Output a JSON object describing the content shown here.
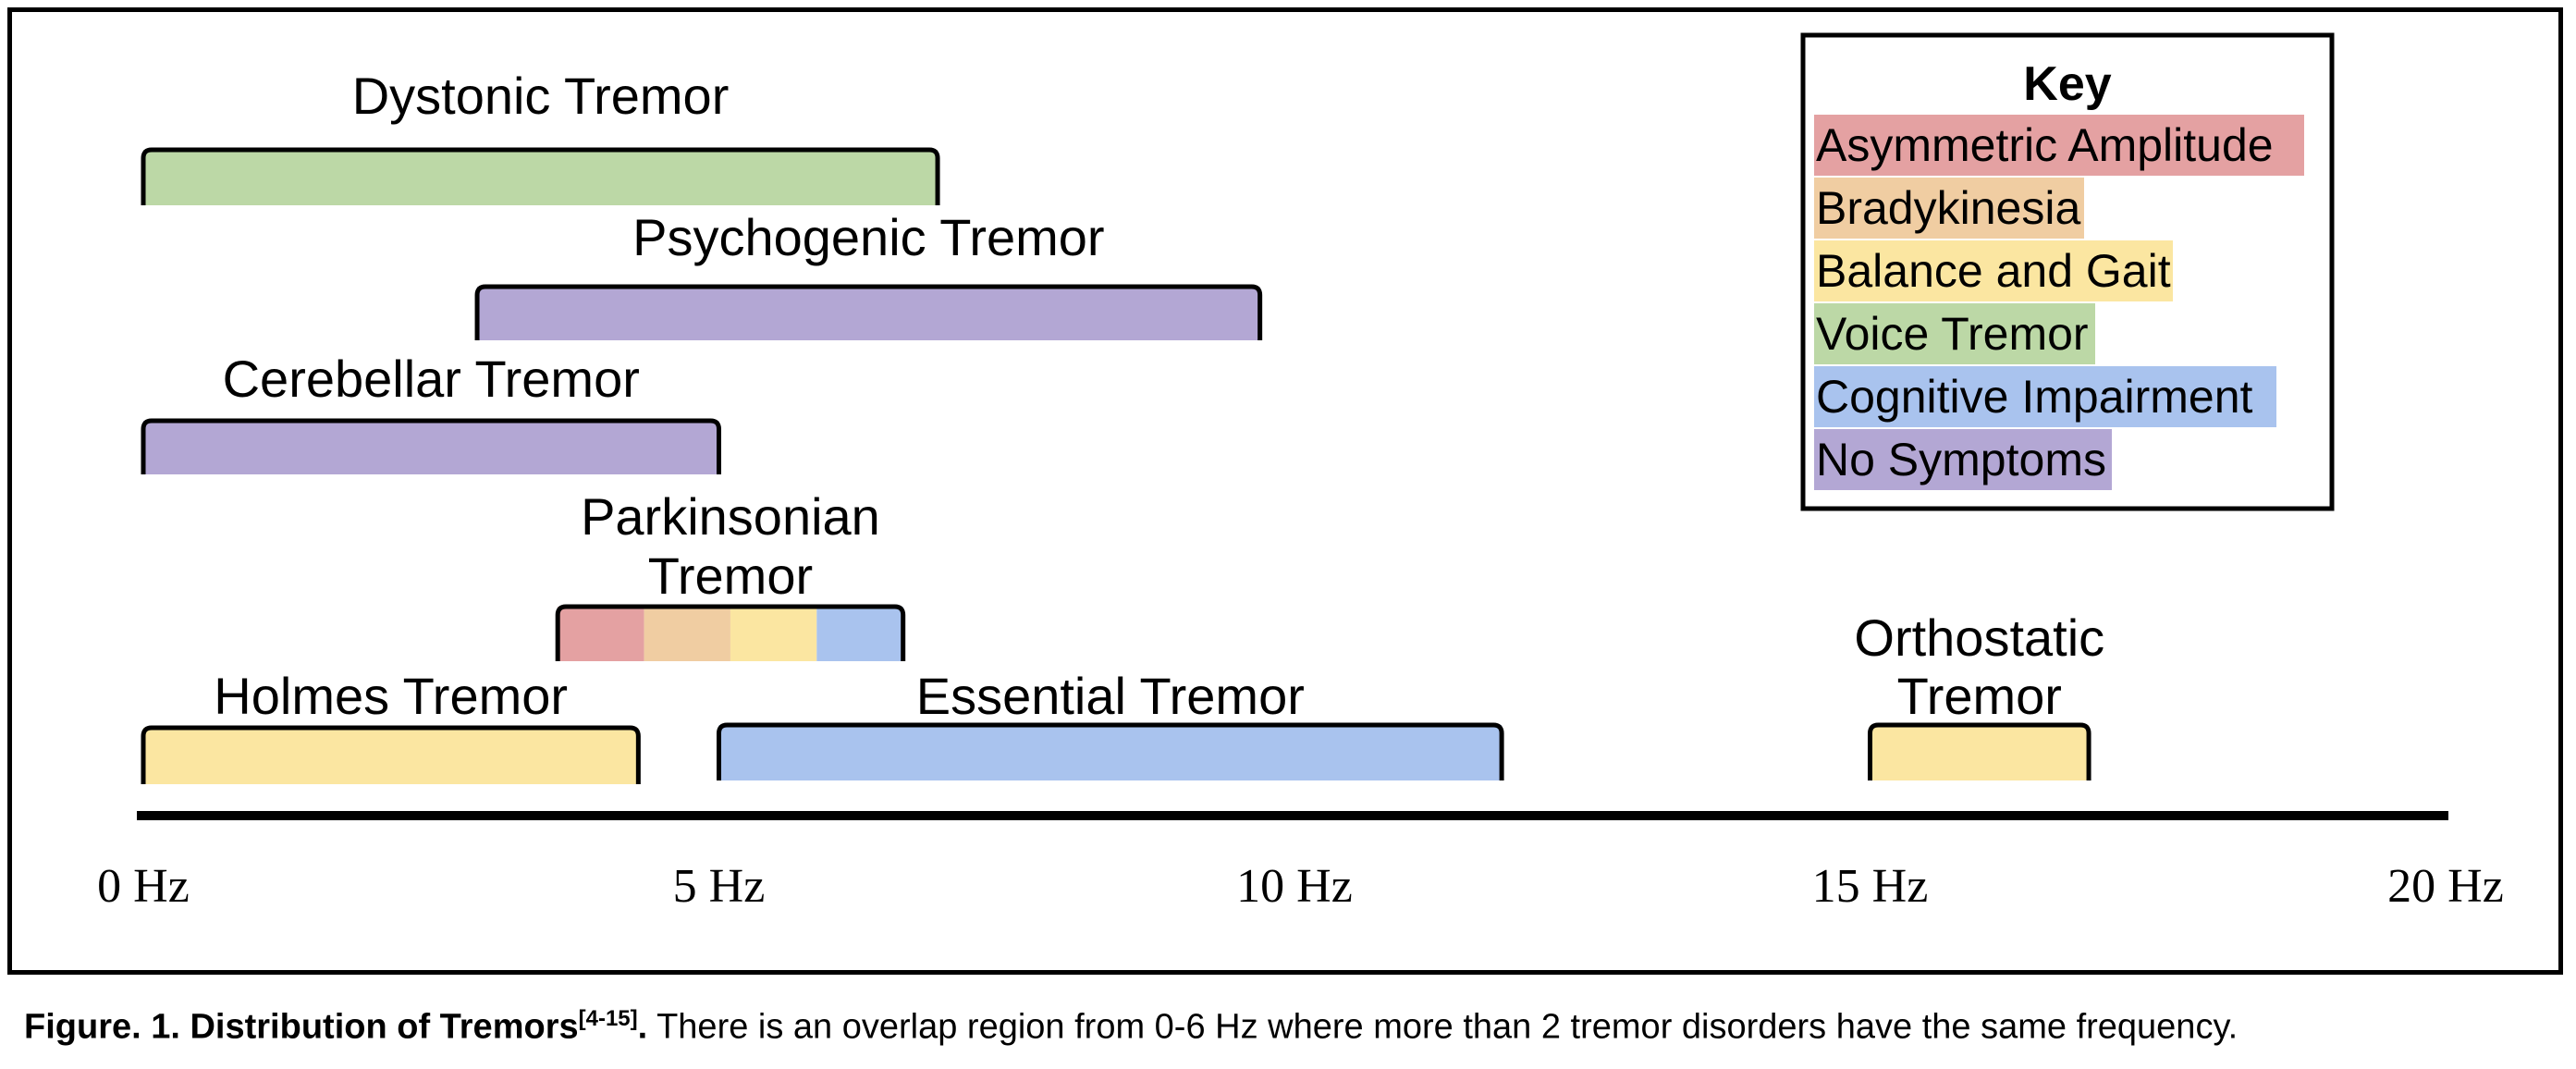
{
  "chart_data": {
    "type": "range-bar",
    "x_axis": {
      "min": 0,
      "max": 20,
      "unit": "Hz",
      "ticks": [
        "0 Hz",
        "5 Hz",
        "10 Hz",
        "15 Hz",
        "20 Hz"
      ]
    },
    "key": {
      "title": "Key",
      "items": [
        {
          "label": "Asymmetric Amplitude",
          "color": "#e4a1a2"
        },
        {
          "label": "Bradykinesia",
          "color": "#f0cda2"
        },
        {
          "label": "Balance and Gait",
          "color": "#fbe6a1"
        },
        {
          "label": "Voice Tremor",
          "color": "#bcd8a6"
        },
        {
          "label": "Cognitive Impairment",
          "color": "#a9c3ee"
        },
        {
          "label": "No Symptoms",
          "color": "#b3a7d4"
        }
      ]
    },
    "tremors": [
      {
        "name": [
          "Dystonic Tremor"
        ],
        "start": 0,
        "end": 6.9,
        "symptoms": [
          "Voice Tremor"
        ]
      },
      {
        "name": [
          "Psychogenic Tremor"
        ],
        "start": 2.9,
        "end": 9.7,
        "symptoms": [
          "No Symptoms"
        ]
      },
      {
        "name": [
          "Cerebellar Tremor"
        ],
        "start": 0,
        "end": 5.0,
        "symptoms": [
          "No Symptoms"
        ]
      },
      {
        "name": [
          "Parkinsonian",
          "Tremor"
        ],
        "start": 3.6,
        "end": 6.6,
        "symptoms": [
          "Asymmetric Amplitude",
          "Bradykinesia",
          "Balance and Gait",
          "Cognitive Impairment"
        ]
      },
      {
        "name": [
          "Holmes Tremor"
        ],
        "start": 0,
        "end": 4.3,
        "symptoms": [
          "Balance and Gait"
        ]
      },
      {
        "name": [
          "Essential Tremor"
        ],
        "start": 5.0,
        "end": 11.8,
        "symptoms": [
          "Cognitive Impairment"
        ]
      },
      {
        "name": [
          "Orthostatic",
          "Tremor"
        ],
        "start": 15.0,
        "end": 16.9,
        "symptoms": [
          "Balance and Gait"
        ]
      }
    ]
  },
  "caption": {
    "bold": "Figure. 1. Distribution of Tremors",
    "citation": "[4-15]",
    "bold_end": ".",
    "text": " There is an overlap region from 0-6 Hz where more than 2 tremor disorders have the same frequency."
  }
}
